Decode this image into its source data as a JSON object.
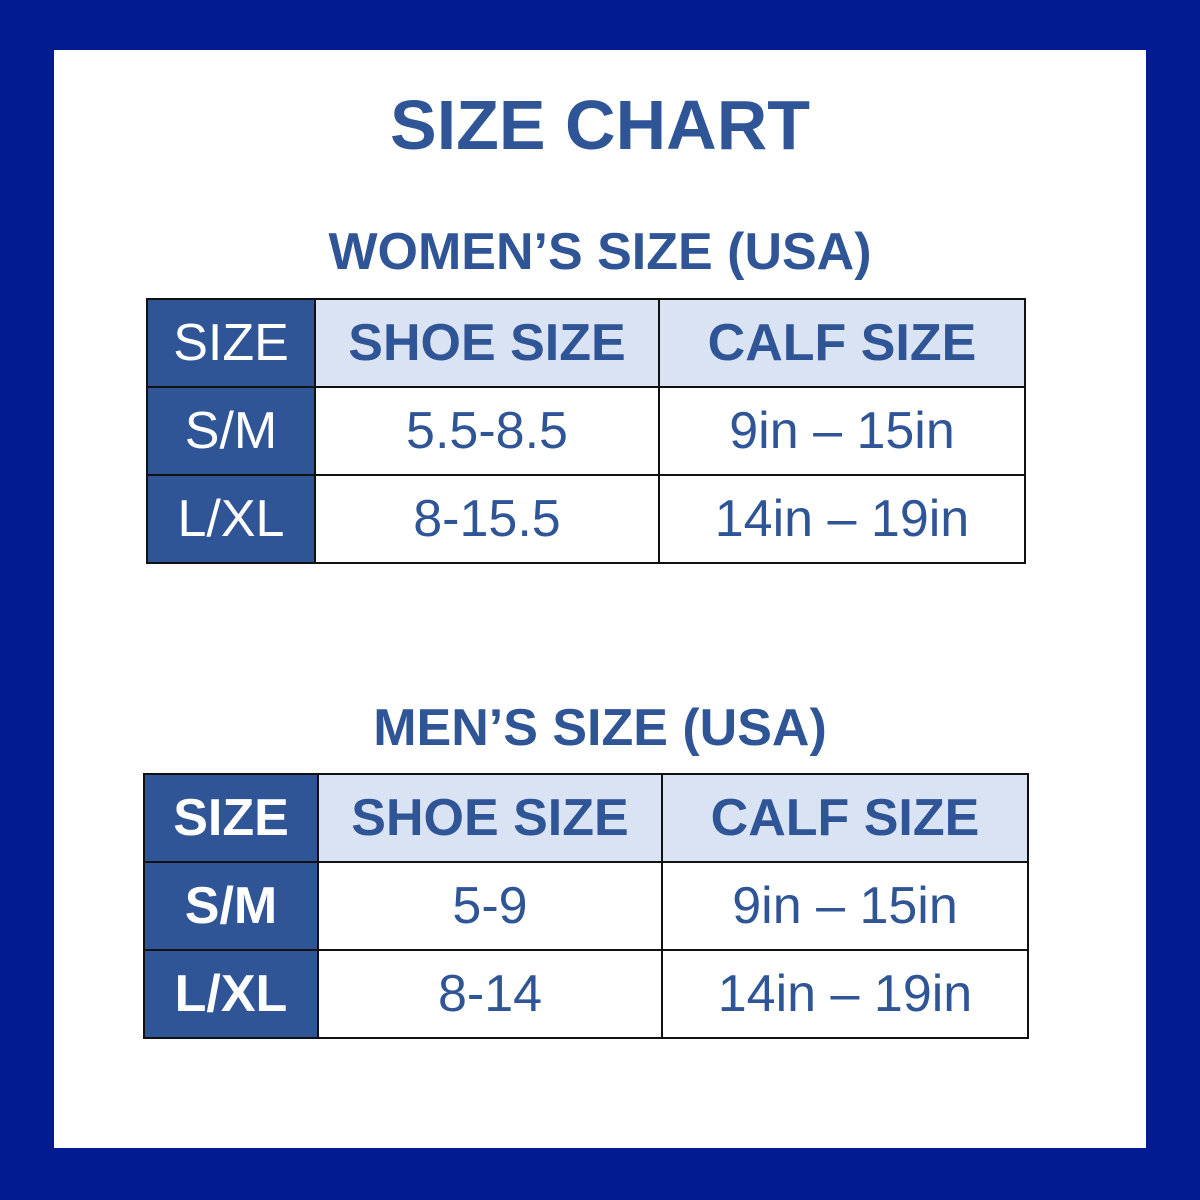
{
  "title": "SIZE CHART",
  "colors": {
    "frame": "#031b91",
    "accent": "#2f5597",
    "header_fill": "#dae3f3"
  },
  "tables": [
    {
      "heading": "WOMEN’S SIZE (USA)",
      "headers": [
        "SIZE",
        "SHOE SIZE",
        "CALF SIZE"
      ],
      "rows": [
        [
          "S/M",
          "5.5-8.5",
          "9in – 15in"
        ],
        [
          "L/XL",
          "8-15.5",
          "14in – 19in"
        ]
      ]
    },
    {
      "heading": "MEN’S SIZE (USA)",
      "headers": [
        "SIZE",
        "SHOE SIZE",
        "CALF SIZE"
      ],
      "rows": [
        [
          "S/M",
          "5-9",
          "9in – 15in"
        ],
        [
          "L/XL",
          "8-14",
          "14in – 19in"
        ]
      ]
    }
  ]
}
